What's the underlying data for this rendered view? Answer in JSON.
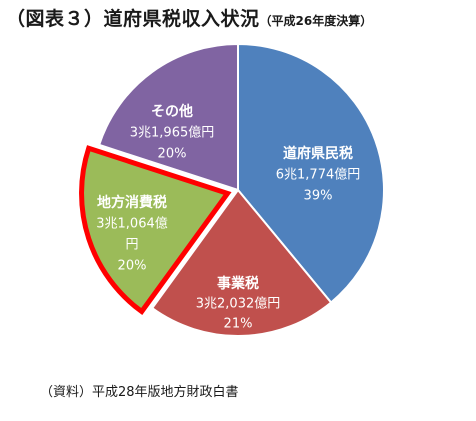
{
  "header": {
    "title": "（図表３）道府県税収入状況",
    "subtitle": "（平成26年度決算）"
  },
  "chart_data": {
    "type": "pie",
    "slices": [
      {
        "label": "道府県民税",
        "amount": "6兆1,774億円",
        "value": 39,
        "percent": "39%",
        "color": "#4f81bd",
        "highlighted": false
      },
      {
        "label": "事業税",
        "amount": "3兆2,032億円",
        "value": 21,
        "percent": "21%",
        "color": "#c0504d",
        "highlighted": false
      },
      {
        "label": "地方消費税",
        "amount": "3兆1,064億円",
        "value": 20,
        "percent": "20%",
        "color": "#9bbb59",
        "highlighted": true,
        "highlight_color": "#ff0000"
      },
      {
        "label": "その他",
        "amount": "3兆1,965億円",
        "value": 20,
        "percent": "20%",
        "color": "#8064a2",
        "highlighted": false
      }
    ]
  },
  "footer": {
    "source": "（資料）平成28年版地方財政白書"
  }
}
